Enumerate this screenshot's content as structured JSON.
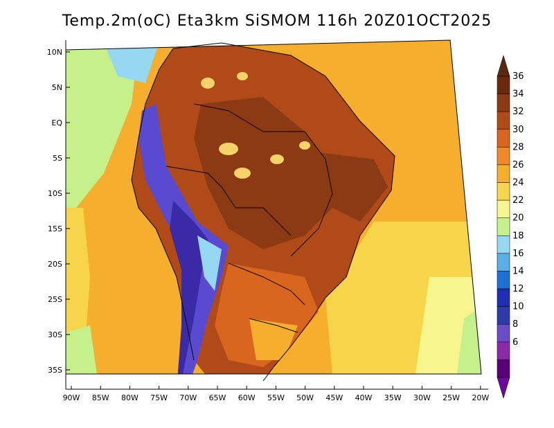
{
  "title": "Temp.2m(oC) Eta3km SiSMOM 116h 20Z01OCT2025",
  "lat_labels": [
    "10N",
    "5N",
    "EQ",
    "5S",
    "10S",
    "15S",
    "20S",
    "25S",
    "30S",
    "35S"
  ],
  "lon_labels": [
    "90W",
    "85W",
    "80W",
    "75W",
    "70W",
    "65W",
    "60W",
    "55W",
    "50W",
    "45W",
    "40W",
    "35W",
    "30W",
    "25W",
    "20W"
  ],
  "colorbar": {
    "labels": [
      "36",
      "34",
      "32",
      "30",
      "28",
      "26",
      "24",
      "22",
      "20",
      "18",
      "16",
      "14",
      "12",
      "10",
      "8",
      "6"
    ],
    "colors": [
      "#6b2a0f",
      "#8b3a14",
      "#b04a18",
      "#d9661f",
      "#f08a26",
      "#f6ae2d",
      "#f7d54a",
      "#f7f58e",
      "#c6f08a",
      "#96d7f2",
      "#5aaeea",
      "#1f6fd6",
      "#1f2fb4",
      "#2e3aa8",
      "#6a4cc8",
      "#8a2aa8",
      "#5a007a"
    ],
    "over_color": "#5a2a10",
    "under_color": "#6a0aa0"
  },
  "field_colors": {
    "ocean_warm": "#f6ae2d",
    "ocean_mild": "#f7d54a",
    "ocean_cool": "#c6f08a",
    "ocean_cold": "#96d7f2",
    "land_hot": "#b04a18",
    "land_very_hot": "#8b3a14",
    "land_warm": "#d9661f",
    "andes_cold": "#5a4ad0",
    "andes_colder": "#3a2aa8",
    "hotspot": "#f6d26a"
  }
}
